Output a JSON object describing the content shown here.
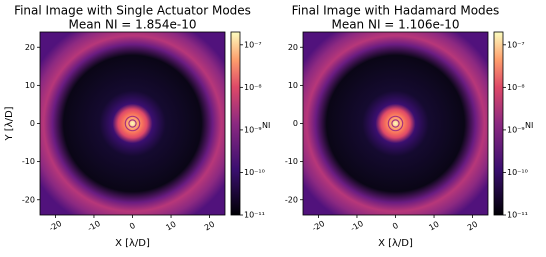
{
  "chart_data": [
    {
      "type": "heatmap",
      "title": "Final Image with Single Actuator Modes",
      "subtitle": "Mean NI = 1.854e-10",
      "xlabel": "X [λ/D]",
      "ylabel": "Y [λ/D]",
      "cmap": "magma",
      "xlim": [
        -24,
        24
      ],
      "ylim": [
        -24,
        24
      ],
      "xticks": [
        -20,
        -10,
        0,
        10,
        20
      ],
      "yticks": [
        -20,
        -10,
        0,
        10,
        20
      ],
      "colorbar": {
        "label": "NI",
        "log": true,
        "lim": [
          1e-11,
          2e-07
        ],
        "ticks": [
          {
            "value": 1e-11,
            "label": "10⁻¹¹"
          },
          {
            "value": 1e-10,
            "label": "10⁻¹⁰"
          },
          {
            "value": 1e-09,
            "label": "10⁻⁹"
          },
          {
            "value": 1e-08,
            "label": "10⁻⁸"
          },
          {
            "value": 1e-07,
            "label": "10⁻⁷"
          }
        ]
      }
    },
    {
      "type": "heatmap",
      "title": "Final Image with Hadamard Modes",
      "subtitle": "Mean NI = 1.106e-10",
      "xlabel": "X [λ/D]",
      "cmap": "magma",
      "xlim": [
        -24,
        24
      ],
      "ylim": [
        -24,
        24
      ],
      "xticks": [
        -20,
        -10,
        0,
        10,
        20
      ],
      "yticks": [
        -20,
        -10,
        0,
        10,
        20
      ],
      "colorbar": {
        "label": "NI",
        "log": true,
        "lim": [
          1e-11,
          2e-07
        ],
        "ticks": [
          {
            "value": 1e-11,
            "label": "10⁻¹¹"
          },
          {
            "value": 1e-10,
            "label": "10⁻¹⁰"
          },
          {
            "value": 1e-09,
            "label": "10⁻⁹"
          },
          {
            "value": 1e-08,
            "label": "10⁻⁸"
          },
          {
            "value": 1e-07,
            "label": "10⁻⁷"
          }
        ]
      }
    }
  ]
}
